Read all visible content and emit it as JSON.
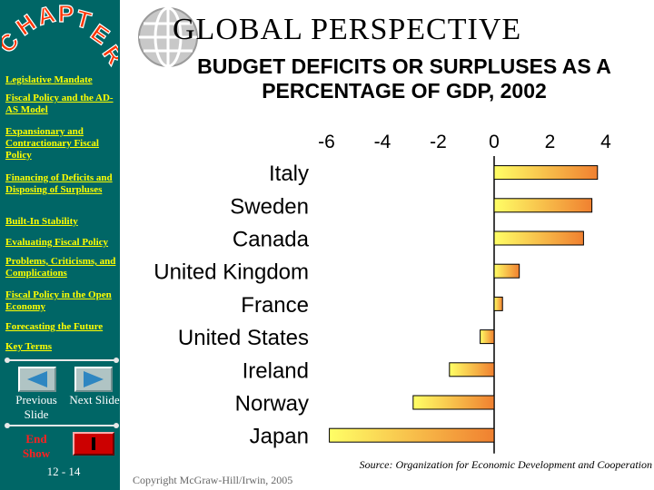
{
  "sidebar": {
    "logo_text": "CHAPTER",
    "links": [
      "Legislative Mandate",
      "Fiscal Policy and the AD-AS Model",
      "Expansionary and Contractionary Fiscal Policy",
      "Financing of Deficits and Disposing of Surpluses",
      "Built-In Stability",
      "Evaluating Fiscal Policy",
      "Problems, Criticisms, and Complications",
      "Fiscal Policy in the Open Economy",
      "Forecasting the Future",
      "Key Terms"
    ],
    "previous_label": "Previous Slide",
    "next_label": "Next Slide",
    "end_show_label": "End Show",
    "page_number": "12 - 14",
    "colors": {
      "background": "#006666",
      "link": "#ffff00",
      "end": "#ff2020"
    }
  },
  "header": {
    "title": "GLOBAL  PERSPECTIVE",
    "chart_title": "BUDGET DEFICITS OR SURPLUSES AS A PERCENTAGE OF GDP, 2002"
  },
  "chart_data": {
    "type": "bar",
    "orientation": "horizontal",
    "title": "BUDGET DEFICITS OR SURPLUSES AS A PERCENTAGE OF GDP, 2002",
    "categories": [
      "Italy",
      "Sweden",
      "Canada",
      "United Kingdom",
      "France",
      "United States",
      "Ireland",
      "Norway",
      "Japan"
    ],
    "values": [
      3.7,
      3.5,
      3.2,
      0.9,
      0.3,
      -0.5,
      -1.6,
      -2.9,
      -5.9
    ],
    "x_ticks": [
      -6,
      -4,
      -2,
      0,
      2,
      4
    ],
    "xlim": [
      -6.1,
      4.1
    ],
    "axis_position": "top",
    "bar_colors": {
      "light": "#ffff66",
      "dark": "#f08030"
    }
  },
  "footer": {
    "source": "Source: Organization for Economic Development and Cooperation",
    "copyright": "Copyright McGraw-Hill/Irwin, 2005"
  }
}
